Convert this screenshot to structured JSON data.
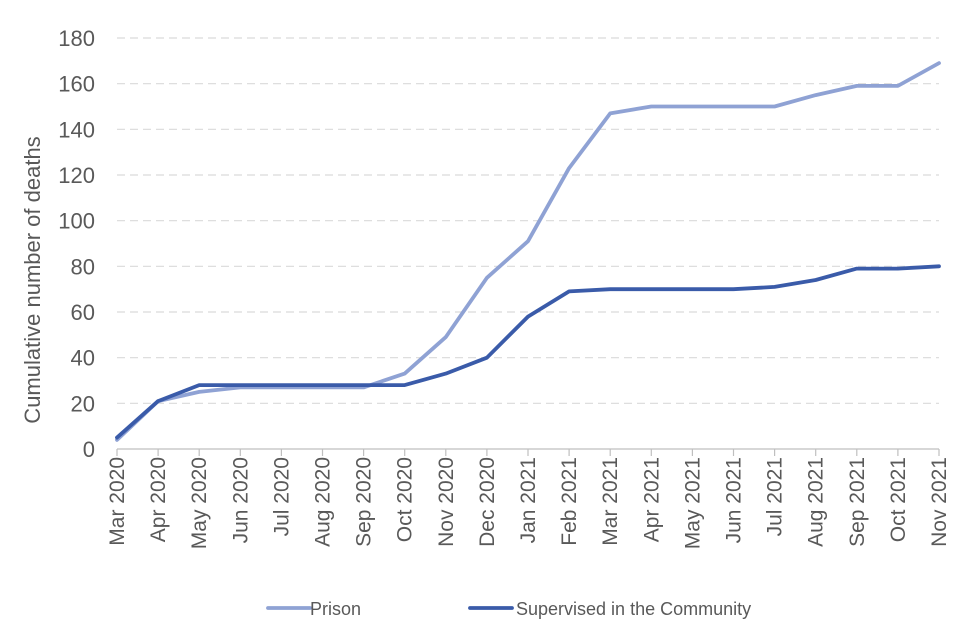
{
  "chart_data": {
    "type": "line",
    "title": "",
    "xlabel": "",
    "ylabel": "Cumulative number of deaths",
    "ylim": [
      0,
      180
    ],
    "yticks": [
      0,
      20,
      40,
      60,
      80,
      100,
      120,
      140,
      160,
      180
    ],
    "grid": true,
    "legend_position": "bottom",
    "categories": [
      "Mar 2020",
      "Apr 2020",
      "May 2020",
      "Jun 2020",
      "Jul 2020",
      "Aug 2020",
      "Sep 2020",
      "Oct 2020",
      "Nov 2020",
      "Dec 2020",
      "Jan 2021",
      "Feb 2021",
      "Mar 2021",
      "Apr 2021",
      "May 2021",
      "Jun 2021",
      "Jul 2021",
      "Aug 2021",
      "Sep 2021",
      "Oct 2021",
      "Nov 2021"
    ],
    "series": [
      {
        "name": "Prison",
        "color": "#8FA2D4",
        "values": [
          4,
          21,
          25,
          27,
          27,
          27,
          27,
          33,
          49,
          75,
          91,
          123,
          147,
          150,
          150,
          150,
          150,
          155,
          159,
          159,
          169
        ]
      },
      {
        "name": "Supervised in the Community",
        "color": "#3A5BA9",
        "values": [
          5,
          21,
          28,
          28,
          28,
          28,
          28,
          28,
          33,
          40,
          58,
          69,
          70,
          70,
          70,
          70,
          71,
          74,
          79,
          79,
          80
        ]
      }
    ]
  }
}
